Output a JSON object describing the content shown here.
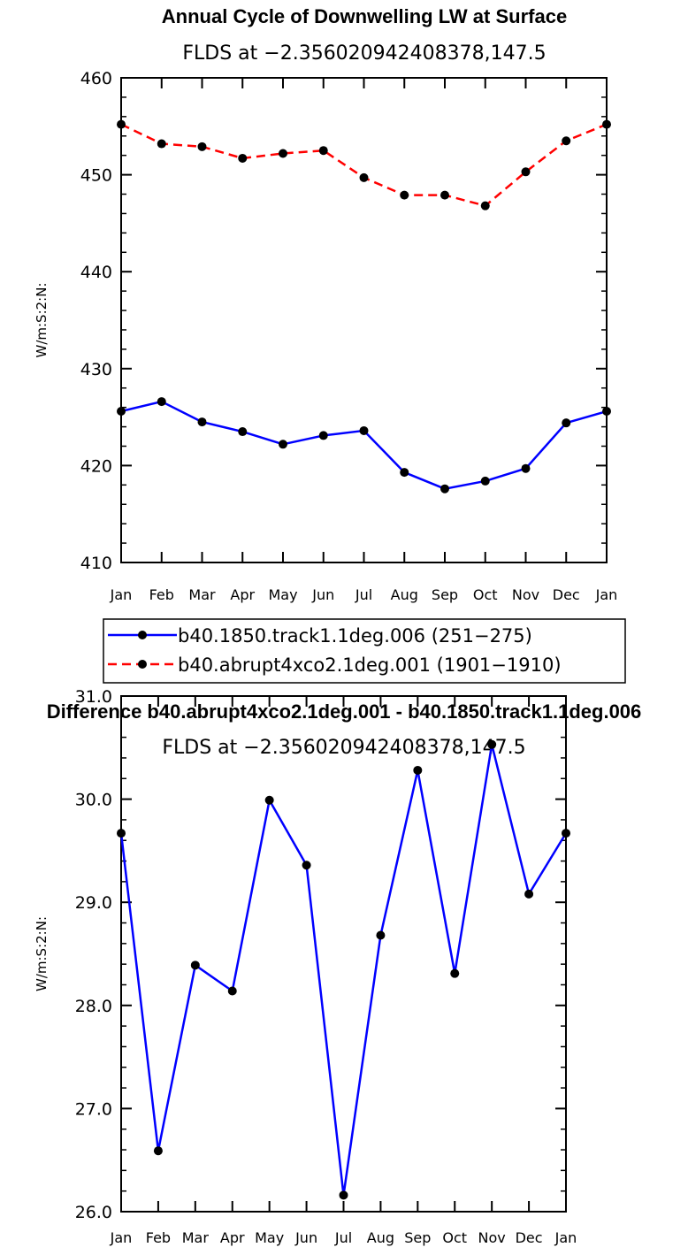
{
  "chart_data": [
    {
      "type": "line",
      "title": "Annual Cycle of Downwelling LW at Surface",
      "subtitle": "FLDS at −2.356020942408378,147.5",
      "ylabel": "W/m:S:2:N:",
      "xlabel": "",
      "ylim": [
        410,
        460
      ],
      "yticks": [
        "410",
        "420",
        "430",
        "440",
        "450",
        "460"
      ],
      "categories": [
        "Jan",
        "Feb",
        "Mar",
        "Apr",
        "May",
        "Jun",
        "Jul",
        "Aug",
        "Sep",
        "Oct",
        "Nov",
        "Dec",
        "Jan"
      ],
      "grid": false,
      "legend": "below",
      "series": [
        {
          "name": "b40.1850.track1.1deg.006 (251−275)",
          "color": "#0000ff",
          "dash": "solid",
          "values": [
            425.6,
            426.6,
            424.5,
            423.5,
            422.2,
            423.1,
            423.6,
            419.3,
            417.6,
            418.4,
            419.7,
            424.4,
            425.6
          ]
        },
        {
          "name": "b40.abrupt4xco2.1deg.001 (1901−1910)",
          "color": "#ff0000",
          "dash": "dashed",
          "values": [
            455.2,
            453.2,
            452.9,
            451.7,
            452.2,
            452.5,
            449.7,
            447.9,
            447.9,
            446.8,
            450.3,
            453.5,
            455.2
          ]
        }
      ]
    },
    {
      "type": "line",
      "title": "Difference b40.abrupt4xco2.1deg.001 - b40.1850.track1.1deg.006",
      "subtitle": "FLDS at −2.356020942408378,147.5",
      "ylabel": "W/m:S:2:N:",
      "xlabel": "",
      "ylim": [
        26.0,
        31.0
      ],
      "yticks": [
        "26.0",
        "27.0",
        "28.0",
        "29.0",
        "30.0",
        "31.0"
      ],
      "categories": [
        "Jan",
        "Feb",
        "Mar",
        "Apr",
        "May",
        "Jun",
        "Jul",
        "Aug",
        "Sep",
        "Oct",
        "Nov",
        "Dec",
        "Jan"
      ],
      "grid": false,
      "series": [
        {
          "color": "#0000ff",
          "dash": "solid",
          "values": [
            29.67,
            26.59,
            28.39,
            28.14,
            29.99,
            29.36,
            26.16,
            28.68,
            30.28,
            28.31,
            30.53,
            29.08,
            29.67
          ]
        }
      ]
    }
  ]
}
